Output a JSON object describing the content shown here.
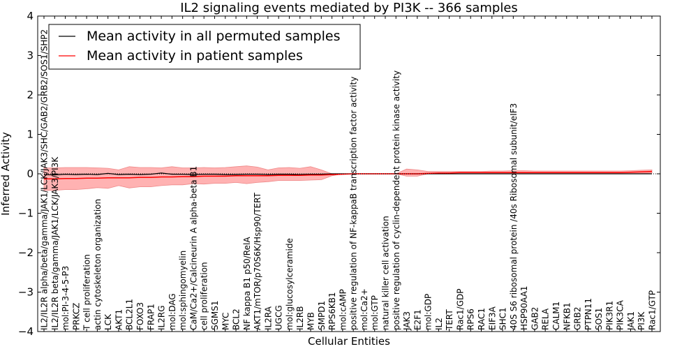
{
  "chart_data": {
    "type": "line",
    "title": "IL2 signaling events mediated by PI3K -- 366 samples",
    "xlabel": "Cellular Entities",
    "ylabel": "Inferred Activity",
    "ylim": [
      -4,
      4
    ],
    "yticks": [
      -4,
      -3,
      -2,
      -1,
      0,
      1,
      2,
      3,
      4
    ],
    "grid": false,
    "legend_position": "top-left",
    "categories": [
      "IL2/IL2R alpha/beta/gamma/JAK1/LCK/JAK3/SHC/GAB2/GRB2/SOS1/SHP2",
      "IL2/IL2R beta/gamma/JAK1/LCK/JAK3/PI3K",
      "mol:PI-3-4-5-P3",
      "PRKCZ",
      "T cell proliferation",
      "actin cytoskeleton organization",
      "LCK",
      "AKT1",
      "BCL2L1",
      "FOXO3",
      "FRAP1",
      "IL2RG",
      "mol:DAG",
      "mol:sphingomyelin",
      "CaM/Ca2+/Calcineurin A alpha-beta B1",
      "cell proliferation",
      "SGMS1",
      "MYC",
      "BCL2",
      "NF kappa B1 p50/RelA",
      "AKT1/mTOR/p70S6K/Hsp90/TERT",
      "IL2RA",
      "UGCG",
      "mol:glucosylceramide",
      "IL2RB",
      "MYB",
      "SMPD1",
      "RPS6KB1",
      "mol:cAMP",
      "positive regulation of NF-kappaB transcription factor activity",
      "mol:Ca2+",
      "mol:GTP",
      "natural killer cell activation",
      "positive regulation of cyclin-dependent protein kinase activity",
      "JAK3",
      "E2F1",
      "mol:GDP",
      "IL2",
      "TERT",
      "Rac1/GDP",
      "RPS6",
      "RAC1",
      "EIF3A",
      "SHC1",
      "40S S6 ribosomal protein /40s Ribosomal subunit/eIF3",
      "HSP90AA1",
      "GAB2",
      "RELA",
      "CALM1",
      "NFKB1",
      "GRB2",
      "PTPN11",
      "SOS1",
      "PIK3R1",
      "PIK3CA",
      "JAK1",
      "PI3K",
      "Rac1/GTP"
    ],
    "series": [
      {
        "name": "Mean activity in all permuted samples",
        "color": "#000000",
        "values": [
          -0.02,
          -0.03,
          -0.01,
          -0.02,
          -0.01,
          -0.02,
          0.01,
          -0.02,
          -0.01,
          -0.02,
          -0.01,
          0.02,
          -0.01,
          -0.01,
          -0.02,
          -0.01,
          -0.01,
          -0.02,
          -0.02,
          -0.01,
          -0.01,
          -0.02,
          -0.01,
          -0.01,
          -0.02,
          -0.01,
          -0.01,
          0.0,
          0.0,
          0.0,
          0.0,
          0.0,
          0.0,
          0.0,
          0.0,
          0.0,
          0.0,
          0.0,
          0.0,
          0.0,
          0.0,
          0.0,
          0.0,
          0.0,
          0.0,
          0.0,
          0.0,
          0.0,
          0.0,
          0.0,
          0.0,
          0.0,
          0.0,
          0.0,
          0.0,
          0.0,
          0.0,
          0.0
        ]
      },
      {
        "name": "Mean activity in patient samples",
        "color": "#ff0000",
        "values": [
          -0.13,
          -0.13,
          -0.12,
          -0.12,
          -0.11,
          -0.11,
          -0.1,
          -0.1,
          -0.1,
          -0.09,
          -0.09,
          -0.08,
          -0.08,
          -0.07,
          -0.07,
          -0.06,
          -0.06,
          -0.06,
          -0.05,
          -0.05,
          -0.05,
          -0.05,
          -0.04,
          -0.04,
          -0.04,
          -0.03,
          -0.03,
          -0.02,
          -0.01,
          0.0,
          0.0,
          0.0,
          0.0,
          0.0,
          0.0,
          0.0,
          0.01,
          0.02,
          0.02,
          0.03,
          0.03,
          0.03,
          0.03,
          0.03,
          0.03,
          0.03,
          0.03,
          0.03,
          0.03,
          0.03,
          0.03,
          0.03,
          0.03,
          0.03,
          0.03,
          0.04,
          0.05,
          0.06
        ]
      }
    ],
    "band": {
      "name": "patient samples spread",
      "color": "#ff0000",
      "upper": [
        0.15,
        0.15,
        0.16,
        0.16,
        0.16,
        0.15,
        0.14,
        0.1,
        0.18,
        0.16,
        0.16,
        0.15,
        0.18,
        0.15,
        0.15,
        0.16,
        0.15,
        0.16,
        0.18,
        0.2,
        0.17,
        0.1,
        0.15,
        0.16,
        0.14,
        0.18,
        0.1,
        0.0,
        0.0,
        0.0,
        0.0,
        0.0,
        0.0,
        0.0,
        0.12,
        0.1,
        0.06,
        0.06,
        0.06,
        0.06,
        0.06,
        0.06,
        0.07,
        0.07,
        0.08,
        0.08,
        0.07,
        0.07,
        0.07,
        0.07,
        0.07,
        0.07,
        0.07,
        0.07,
        0.07,
        0.08,
        0.09,
        0.1
      ],
      "lower": [
        -0.42,
        -0.42,
        -0.4,
        -0.4,
        -0.38,
        -0.35,
        -0.37,
        -0.3,
        -0.36,
        -0.33,
        -0.33,
        -0.3,
        -0.28,
        -0.28,
        -0.25,
        -0.26,
        -0.24,
        -0.24,
        -0.22,
        -0.25,
        -0.22,
        -0.2,
        -0.17,
        -0.17,
        -0.17,
        -0.16,
        -0.15,
        -0.05,
        0.0,
        0.0,
        0.0,
        0.0,
        0.0,
        0.0,
        -0.06,
        -0.06,
        0.0,
        0.0,
        0.0,
        0.0,
        0.0,
        0.0,
        0.0,
        0.0,
        0.0,
        0.0,
        0.0,
        0.0,
        0.0,
        0.0,
        0.0,
        0.0,
        0.0,
        0.0,
        0.0,
        0.0,
        0.01,
        0.02
      ]
    }
  }
}
